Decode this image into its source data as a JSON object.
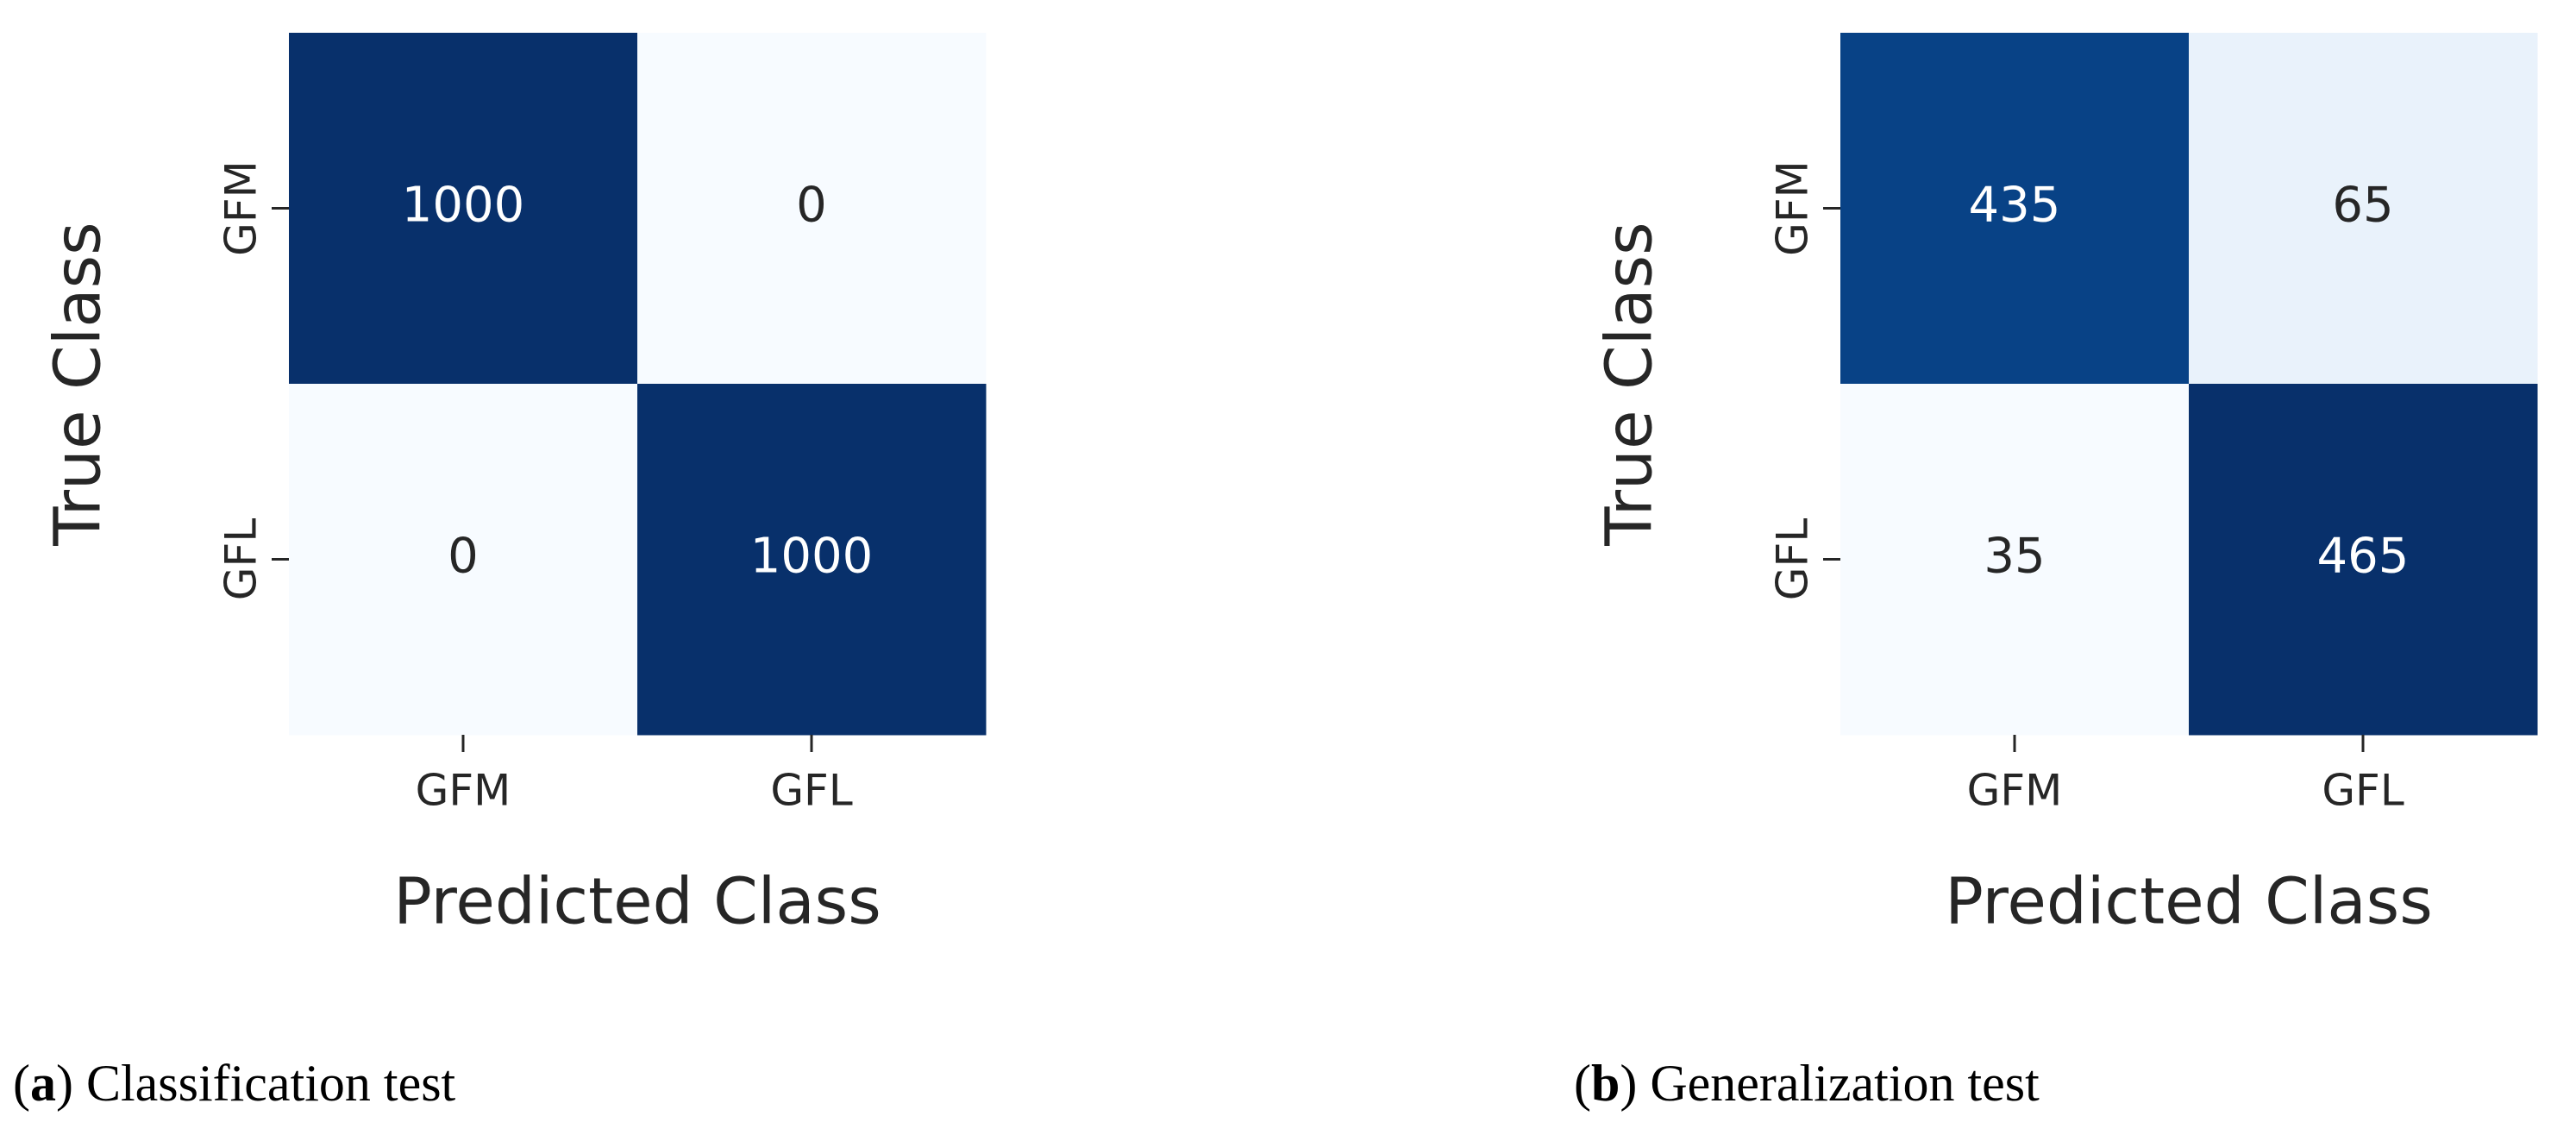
{
  "chart_data": [
    {
      "type": "heatmap",
      "x_label": "Predicted Class",
      "y_label": "True Class",
      "x_categories": [
        "GFM",
        "GFL"
      ],
      "y_categories": [
        "GFM",
        "GFL"
      ],
      "values": [
        [
          1000,
          0
        ],
        [
          0,
          1000
        ]
      ],
      "colors": [
        "#f7fbff",
        "#deebf7",
        "#c6dbef",
        "#9ecae1",
        "#6baed6",
        "#4292c6",
        "#2171b5",
        "#08519c",
        "#08306b"
      ],
      "caption_parts": [
        "(",
        "a",
        ") Classification test"
      ]
    },
    {
      "type": "heatmap",
      "x_label": "Predicted Class",
      "y_label": "True Class",
      "x_categories": [
        "GFM",
        "GFL"
      ],
      "y_categories": [
        "GFM",
        "GFL"
      ],
      "values": [
        [
          435,
          65
        ],
        [
          35,
          465
        ]
      ],
      "colors": [
        "#f7fbff",
        "#deebf7",
        "#c6dbef",
        "#9ecae1",
        "#6baed6",
        "#4292c6",
        "#2171b5",
        "#08519c",
        "#08306b"
      ],
      "caption_parts": [
        "(",
        "b",
        ") Generalization test"
      ]
    }
  ]
}
